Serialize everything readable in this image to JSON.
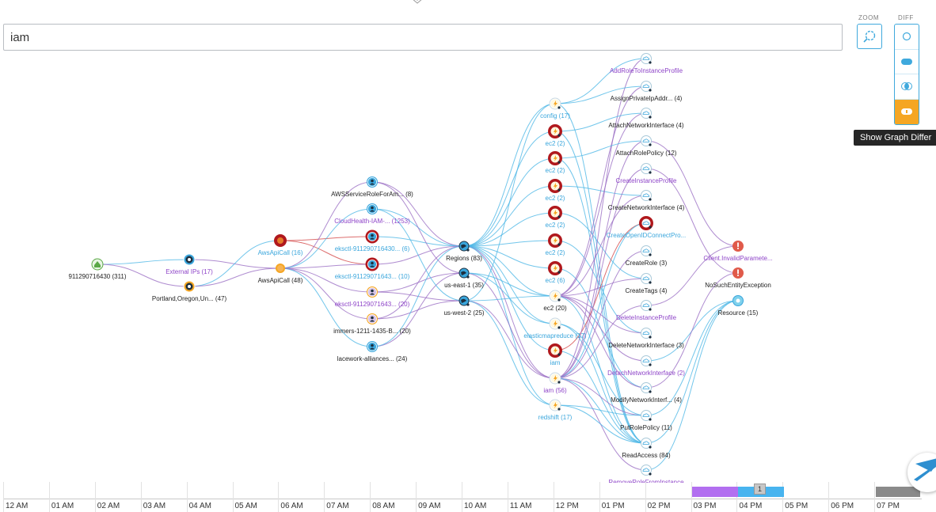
{
  "search": {
    "value": "iam"
  },
  "controls": {
    "zoom_label": "ZOOM",
    "diff_label": "DIFF",
    "tooltip": "Show Graph Differ"
  },
  "colors": {
    "accent": "#3aa6dc",
    "purple": "#8e44c8",
    "red": "#b0181d",
    "orange": "#f5a623",
    "timeline_purple": "#b26ff0",
    "timeline_blue": "#48b4ef",
    "timeline_gray": "#8a8a8a"
  },
  "graph": {
    "nodes": [
      {
        "id": "n0",
        "label": "911290716430 (311)",
        "kind": "home",
        "color": "default"
      },
      {
        "id": "n1",
        "label": "External IPs (17)",
        "kind": "ip",
        "color": "purple"
      },
      {
        "id": "n2",
        "label": "Portland,Oregon,Un... (47)",
        "kind": "ip-orange",
        "color": "default"
      },
      {
        "id": "n3",
        "label": "AwsApiCall (16)",
        "kind": "api-red",
        "color": "blue"
      },
      {
        "id": "n4",
        "label": "AwsApiCall (48)",
        "kind": "api-orange",
        "color": "default"
      },
      {
        "id": "n5",
        "label": "AWSServiceRoleForAm... (8)",
        "kind": "user",
        "color": "default"
      },
      {
        "id": "n6",
        "label": "CloudHealth-IAM-... (1253)",
        "kind": "user",
        "color": "purple"
      },
      {
        "id": "n7",
        "label": "eksctl-911290716430... (6)",
        "kind": "user-red",
        "color": "blue"
      },
      {
        "id": "n8",
        "label": "eksctl-91129071643... (10)",
        "kind": "user-red",
        "color": "blue"
      },
      {
        "id": "n9",
        "label": "eksctl-91129071643... (20)",
        "kind": "user-orange",
        "color": "purple"
      },
      {
        "id": "n10",
        "label": "immers-1211-1435-B... (20)",
        "kind": "user-orange",
        "color": "default"
      },
      {
        "id": "n11",
        "label": "lacework-alliances... (24)",
        "kind": "user",
        "color": "default"
      },
      {
        "id": "n12",
        "label": "Regions (83)",
        "kind": "globe",
        "color": "default"
      },
      {
        "id": "n13",
        "label": "us-east-1 (35)",
        "kind": "globe",
        "color": "default"
      },
      {
        "id": "n14",
        "label": "us-west-2 (25)",
        "kind": "globe",
        "color": "default"
      },
      {
        "id": "n15",
        "label": "config (17)",
        "kind": "service",
        "color": "blue"
      },
      {
        "id": "n16",
        "label": "ec2 (2)",
        "kind": "service-red",
        "color": "blue"
      },
      {
        "id": "n17",
        "label": "ec2 (2)",
        "kind": "service-red",
        "color": "blue"
      },
      {
        "id": "n18",
        "label": "ec2 (2)",
        "kind": "service-red",
        "color": "blue"
      },
      {
        "id": "n19",
        "label": "ec2 (2)",
        "kind": "service-red",
        "color": "blue"
      },
      {
        "id": "n20",
        "label": "ec2 (2)",
        "kind": "service-red",
        "color": "blue"
      },
      {
        "id": "n21",
        "label": "ec2 (6)",
        "kind": "service-red",
        "color": "blue"
      },
      {
        "id": "n22",
        "label": "ec2 (20)",
        "kind": "service",
        "color": "default"
      },
      {
        "id": "n23",
        "label": "elasticmapreduce (17)",
        "kind": "service",
        "color": "blue"
      },
      {
        "id": "n24",
        "label": "iam",
        "kind": "service-red",
        "color": "blue"
      },
      {
        "id": "n25",
        "label": "iam (56)",
        "kind": "service",
        "color": "purple"
      },
      {
        "id": "n26",
        "label": "redshift (17)",
        "kind": "service",
        "color": "blue"
      },
      {
        "id": "n27",
        "label": "AddRoleToInstanceProfile",
        "kind": "cloud",
        "color": "purple"
      },
      {
        "id": "n28",
        "label": "AssignPrivateIpAddr... (4)",
        "kind": "cloud",
        "color": "default"
      },
      {
        "id": "n29",
        "label": "AttachNetworkInterface (4)",
        "kind": "cloud",
        "color": "default"
      },
      {
        "id": "n30",
        "label": "AttachRolePolicy (12)",
        "kind": "cloud",
        "color": "default"
      },
      {
        "id": "n31",
        "label": "CreateInstanceProfile",
        "kind": "cloud",
        "color": "purple"
      },
      {
        "id": "n32",
        "label": "CreateNetworkInterface (4)",
        "kind": "cloud",
        "color": "default"
      },
      {
        "id": "n33",
        "label": "CreateOpenIDConnectPro...",
        "kind": "cloud-red",
        "color": "blue"
      },
      {
        "id": "n34",
        "label": "CreateRole (3)",
        "kind": "cloud",
        "color": "default"
      },
      {
        "id": "n35",
        "label": "CreateTags (4)",
        "kind": "cloud",
        "color": "default"
      },
      {
        "id": "n36",
        "label": "DeleteInstanceProfile",
        "kind": "cloud",
        "color": "purple"
      },
      {
        "id": "n37",
        "label": "DeleteNetworkInterface (3)",
        "kind": "cloud",
        "color": "default"
      },
      {
        "id": "n38",
        "label": "DetachNetworkInterface (2)",
        "kind": "cloud",
        "color": "purple"
      },
      {
        "id": "n39",
        "label": "ModifyNetworkInterf... (4)",
        "kind": "cloud",
        "color": "default"
      },
      {
        "id": "n40",
        "label": "PutRolePolicy (11)",
        "kind": "cloud",
        "color": "default"
      },
      {
        "id": "n41",
        "label": "ReadAccess (84)",
        "kind": "cloud",
        "color": "default"
      },
      {
        "id": "n42",
        "label": "RemoveRoleFromInstance",
        "kind": "cloud",
        "color": "purple"
      },
      {
        "id": "n43",
        "label": "Client.InvalidParamete...",
        "kind": "error",
        "color": "purple"
      },
      {
        "id": "n44",
        "label": "NoSuchEntityException",
        "kind": "error",
        "color": "default"
      },
      {
        "id": "n45",
        "label": "Resource (15)",
        "kind": "resource",
        "color": "default"
      }
    ]
  },
  "timeline": {
    "hours": [
      "12 AM",
      "01 AM",
      "02 AM",
      "03 AM",
      "04 AM",
      "05 AM",
      "06 AM",
      "07 AM",
      "08 AM",
      "09 AM",
      "10 AM",
      "11 AM",
      "12 PM",
      "01 PM",
      "02 PM",
      "03 PM",
      "04 PM",
      "05 PM",
      "06 PM",
      "07 PM"
    ],
    "badge": "1"
  }
}
